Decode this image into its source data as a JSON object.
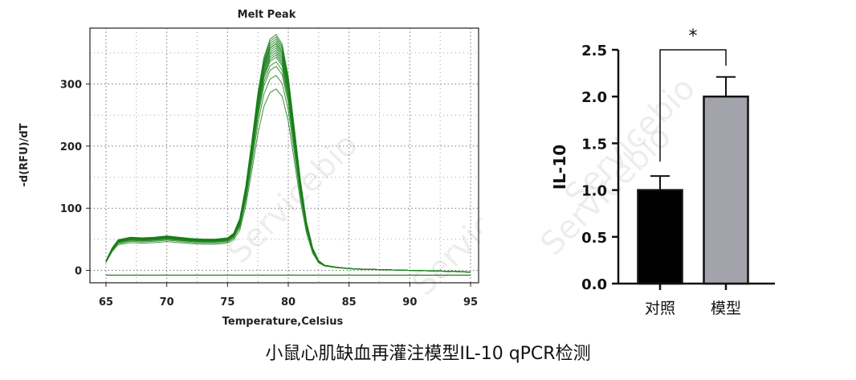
{
  "caption": "小鼠心肌缺血再灌注模型IL-10 qPCR检测",
  "watermarks": [
    "Servicebio",
    "Servicebio",
    "Servicebio",
    "Servicebio"
  ],
  "chart_data": [
    {
      "type": "line",
      "title": "Melt Peak",
      "xlabel": "Temperature,Celsius",
      "ylabel": "-d(RFU)/dT",
      "xlim": [
        65,
        95
      ],
      "ylim": [
        -20,
        390
      ],
      "xticks": [
        65,
        70,
        75,
        80,
        85,
        90,
        95
      ],
      "yticks": [
        0,
        100,
        200,
        300
      ],
      "grid": true,
      "color": "#1a7f1a",
      "peak_temperature": 79,
      "curve_shape": {
        "x": [
          65,
          65.5,
          66,
          67,
          68,
          69,
          70,
          71,
          72,
          73,
          74,
          75,
          75.5,
          76,
          76.5,
          77,
          77.5,
          78,
          78.5,
          79,
          79.5,
          80,
          80.5,
          81,
          81.5,
          82,
          82.5,
          83,
          84,
          85,
          86,
          88,
          90,
          92,
          94,
          95
        ],
        "y": [
          15,
          35,
          48,
          52,
          51,
          52,
          54,
          52,
          50,
          49,
          49,
          51,
          58,
          80,
          130,
          200,
          275,
          330,
          358,
          365,
          350,
          300,
          220,
          140,
          75,
          35,
          15,
          8,
          5,
          3,
          2,
          1,
          0,
          -1,
          -2,
          -3
        ]
      },
      "series_scales": [
        0.8,
        0.86,
        0.9,
        0.92,
        0.94,
        0.95,
        0.96,
        0.97,
        0.98,
        0.99,
        1.0,
        1.0,
        1.01,
        1.02,
        1.03,
        1.04
      ]
    },
    {
      "type": "bar",
      "categories": [
        "对照",
        "模型"
      ],
      "values": [
        1.0,
        2.0
      ],
      "errors": [
        0.15,
        0.21
      ],
      "colors": [
        "#000000",
        "#a3a3ab"
      ],
      "ylabel": "IL-10",
      "ylim": [
        0,
        2.5
      ],
      "yticks": [
        0.0,
        0.5,
        1.0,
        1.5,
        2.0,
        2.5
      ],
      "significance": {
        "label": "*",
        "between": [
          0,
          1
        ],
        "y": 2.5
      }
    }
  ]
}
